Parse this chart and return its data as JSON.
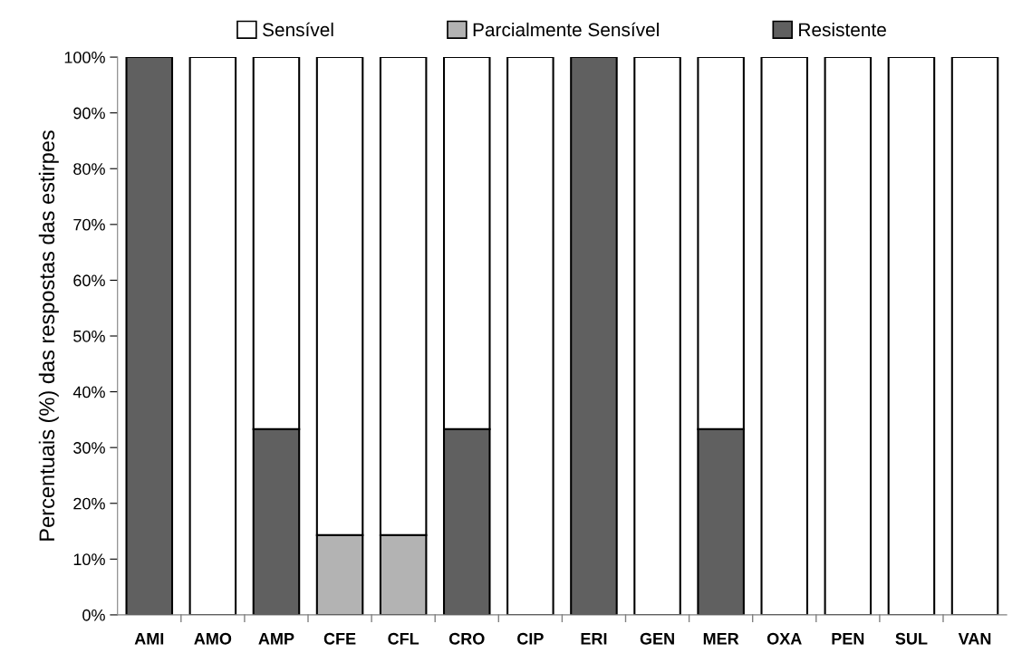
{
  "chart_data": {
    "type": "bar",
    "stacked": true,
    "ylabel": "Percentuais (%) das respostas das estirpes",
    "categories": [
      "AMI",
      "AMO",
      "AMP",
      "CFE",
      "CFL",
      "CRO",
      "CIP",
      "ERI",
      "GEN",
      "MER",
      "OXA",
      "PEN",
      "SUL",
      "VAN"
    ],
    "series": [
      {
        "name": "Resistente",
        "color": "#606060",
        "values": [
          100,
          0,
          33.3,
          0,
          0,
          33.3,
          0,
          100,
          0,
          33.3,
          0,
          0,
          0,
          0
        ]
      },
      {
        "name": "Parcialmente Sensível",
        "color": "#b3b3b3",
        "values": [
          0,
          0,
          0,
          14.3,
          14.3,
          0,
          0,
          0,
          0,
          0,
          0,
          0,
          0,
          0
        ]
      },
      {
        "name": "Sensível",
        "color": "#ffffff",
        "values": [
          0,
          100,
          66.7,
          85.7,
          85.7,
          66.7,
          100,
          0,
          100,
          66.7,
          100,
          100,
          100,
          100
        ]
      }
    ],
    "ylim": [
      0,
      100
    ],
    "yticks": [
      {
        "value": 0,
        "label": "0%"
      },
      {
        "value": 10,
        "label": "10%"
      },
      {
        "value": 20,
        "label": "20%"
      },
      {
        "value": 30,
        "label": "30%"
      },
      {
        "value": 40,
        "label": "40%"
      },
      {
        "value": 50,
        "label": "50%"
      },
      {
        "value": 60,
        "label": "60%"
      },
      {
        "value": 70,
        "label": "70%"
      },
      {
        "value": 80,
        "label": "80%"
      },
      {
        "value": 90,
        "label": "90%"
      },
      {
        "value": 100,
        "label": "100%"
      }
    ],
    "grid": false,
    "legend": "top"
  }
}
